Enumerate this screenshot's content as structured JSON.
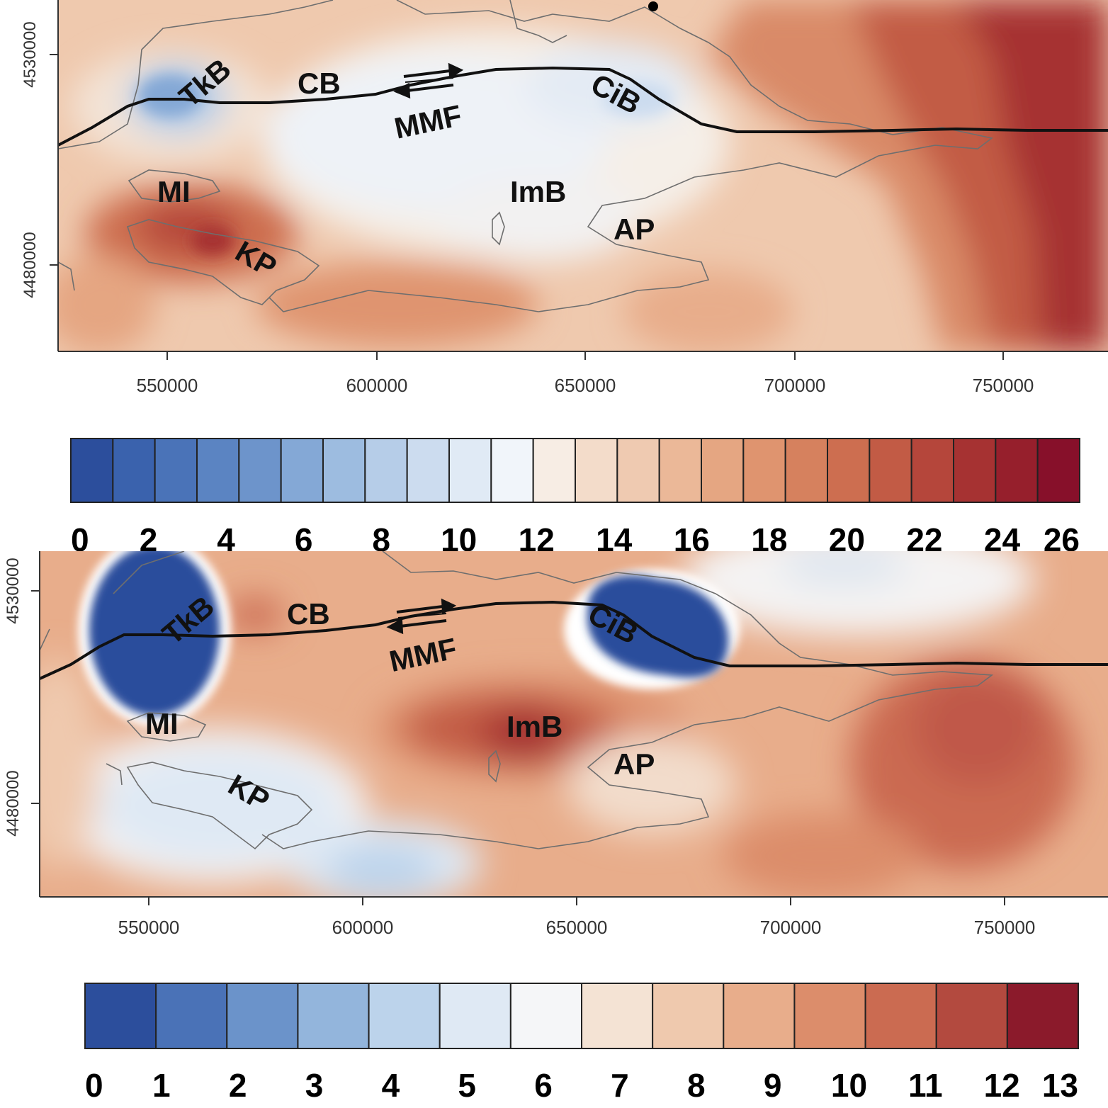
{
  "panels": [
    {
      "x_ticks": [
        "550000",
        "600000",
        "650000",
        "700000",
        "750000"
      ],
      "y_ticks": [
        "4530000",
        "4480000"
      ],
      "labels": {
        "TkB": "TkB",
        "CB": "CB",
        "MMF": "MMF",
        "CiB": "CiB",
        "MI": "MI",
        "ImB": "ImB",
        "AP": "AP",
        "KP": "KP"
      },
      "colorbar": {
        "ticks": [
          "0",
          "2",
          "4",
          "6",
          "8",
          "10",
          "12",
          "14",
          "16",
          "18",
          "20",
          "22",
          "24",
          "26"
        ],
        "colors": [
          "#2c4e9c",
          "#3a62ad",
          "#4a73b8",
          "#5b84c2",
          "#6d94cb",
          "#84a8d6",
          "#9dbce0",
          "#b6cde8",
          "#ccdcef",
          "#e0eaf5",
          "#f1f5fa",
          "#f7ede4",
          "#f3dcca",
          "#efcab1",
          "#ebb898",
          "#e5a682",
          "#df946f",
          "#d6815e",
          "#cd6e50",
          "#c25b45",
          "#b5463b",
          "#a63232",
          "#961f2c",
          "#87102a"
        ]
      }
    },
    {
      "x_ticks": [
        "550000",
        "600000",
        "650000",
        "700000",
        "750000"
      ],
      "y_ticks": [
        "4530000",
        "4480000"
      ],
      "labels": {
        "TkB": "TkB",
        "CB": "CB",
        "MMF": "MMF",
        "CiB": "CiB",
        "MI": "MI",
        "ImB": "ImB",
        "AP": "AP",
        "KP": "KP"
      },
      "colorbar": {
        "ticks": [
          "0",
          "1",
          "2",
          "3",
          "4",
          "5",
          "6",
          "7",
          "8",
          "9",
          "10",
          "11",
          "12",
          "13"
        ],
        "colors": [
          "#2c4e9c",
          "#4a72b7",
          "#6b93ca",
          "#93b5dc",
          "#bcd3eb",
          "#dfe9f4",
          "#f5f6f8",
          "#f4e3d4",
          "#efc9ae",
          "#e8ad8b",
          "#dc8d6b",
          "#cb6b51",
          "#b34a3f",
          "#8b1a2b"
        ]
      }
    }
  ]
}
